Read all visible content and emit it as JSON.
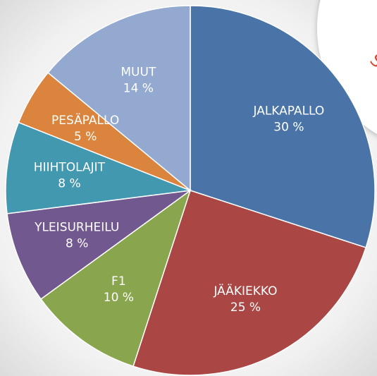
{
  "chart_data": {
    "type": "pie",
    "categories": [
      "JALKAPALLO",
      "JÄÄKIEKKO",
      "F1",
      "YLEISURHEILU",
      "HIIHTOLAJIT",
      "PESÄPALLO",
      "MUUT"
    ],
    "values": [
      30,
      25,
      10,
      8,
      8,
      5,
      14
    ],
    "value_labels": [
      "30 %",
      "25 %",
      "10 %",
      "8 %",
      "8 %",
      "5 %",
      "14 %"
    ],
    "colors": [
      "#4a74a8",
      "#aa4644",
      "#89a54e",
      "#71588f",
      "#4198af",
      "#db843d",
      "#93a9cf"
    ],
    "annotation": "SISÄ"
  }
}
